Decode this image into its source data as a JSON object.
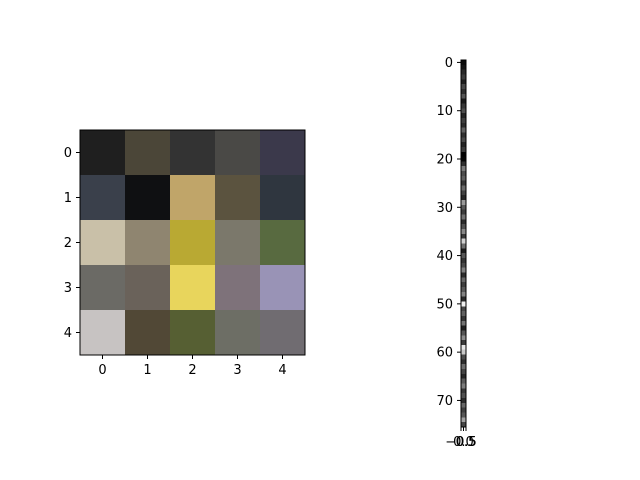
{
  "chart_data": [
    {
      "type": "heatmap",
      "title": "",
      "xlabel": "",
      "ylabel": "",
      "xticks": [
        "0",
        "1",
        "2",
        "3",
        "4"
      ],
      "yticks": [
        "0",
        "1",
        "2",
        "3",
        "4"
      ],
      "xlim": [
        -0.5,
        4.5
      ],
      "ylim": [
        4.5,
        -0.5
      ],
      "grid": false,
      "colors": [
        [
          "#1f1f1f",
          "#4b4638",
          "#333333",
          "#4a4946",
          "#3b394b"
        ],
        [
          "#3a404b",
          "#0f1012",
          "#c0a569",
          "#5b533f",
          "#2f363f"
        ],
        [
          "#c9c0a8",
          "#8f8570",
          "#b9a933",
          "#7b786b",
          "#586a40"
        ],
        [
          "#6b6a65",
          "#6a625a",
          "#e8d55c",
          "#7e727a",
          "#9993b6"
        ],
        [
          "#c7c3c2",
          "#514836",
          "#565f33",
          "#6d6e65",
          "#706c71"
        ]
      ]
    },
    {
      "type": "heatmap",
      "title": "",
      "xlabel": "",
      "ylabel": "",
      "xticks": [
        "−0.5",
        "0.0",
        "0.5"
      ],
      "yticks": [
        "0",
        "10",
        "20",
        "30",
        "40",
        "50",
        "60",
        "70"
      ],
      "xlim": [
        -0.5,
        0.5
      ],
      "ylim": [
        75.5,
        -0.5
      ],
      "grid": false,
      "column_colors": [
        "#0a0a0a",
        "#131313",
        "#2a2a2a",
        "#3c3c3c",
        "#1e1e1e",
        "#474747",
        "#2e2e2e",
        "#555555",
        "#1a1a1a",
        "#383838",
        "#4f4f4f",
        "#252525",
        "#3f3f3f",
        "#2c2c2c",
        "#606060",
        "#313131",
        "#494949",
        "#232323",
        "#3a3a3a",
        "#000000",
        "#050505",
        "#2f2f2f",
        "#7a7a7a",
        "#4d4d4d",
        "#5f5f5f",
        "#363636",
        "#6a6a6a",
        "#424242",
        "#272727",
        "#999999",
        "#585858",
        "#3d3d3d",
        "#717171",
        "#2b2b2b",
        "#505050",
        "#878787",
        "#393939",
        "#d0d0d0",
        "#6e6e6e",
        "#1c1c1c",
        "#565656",
        "#343434",
        "#4a4a4a",
        "#7f7f7f",
        "#2d2d2d",
        "#666666",
        "#3e3e3e",
        "#595959",
        "#838383",
        "#2a2a2a",
        "#f0f0f0",
        "#474747",
        "#606060",
        "#353535",
        "#727272",
        "#1f1f1f",
        "#555555",
        "#8c8c8c",
        "#3b3b3b",
        "#e6e6e6",
        "#c8c8c8",
        "#4c4c4c",
        "#2e2e2e",
        "#6b6b6b",
        "#444444",
        "#262626",
        "#595959",
        "#7c7c7c",
        "#383838",
        "#505050",
        "#2b2b2b",
        "#676767",
        "#3f3f3f",
        "#575757",
        "#a0a0a0",
        "#454545"
      ]
    }
  ]
}
